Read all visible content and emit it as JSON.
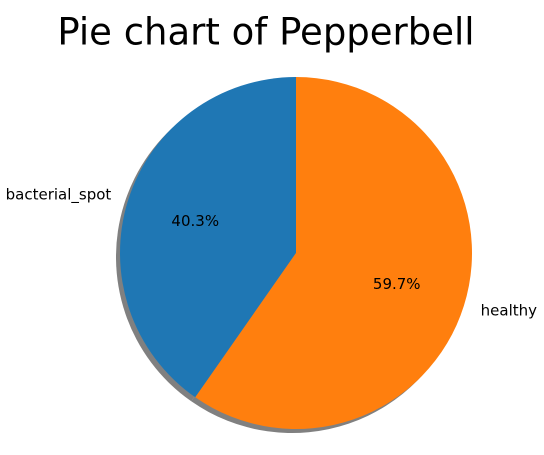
{
  "chart_data": {
    "type": "pie",
    "title": "Pie chart of Pepperbell",
    "categories": [
      "bacterial_spot",
      "healthy"
    ],
    "values": [
      40.3,
      59.7
    ],
    "percent_labels": [
      "40.3%",
      "59.7%"
    ],
    "colors": [
      "#1f77b4",
      "#ff7f0e"
    ],
    "start_angle_deg": 90,
    "direction": "counterclockwise",
    "shadow": true,
    "legend": false
  }
}
